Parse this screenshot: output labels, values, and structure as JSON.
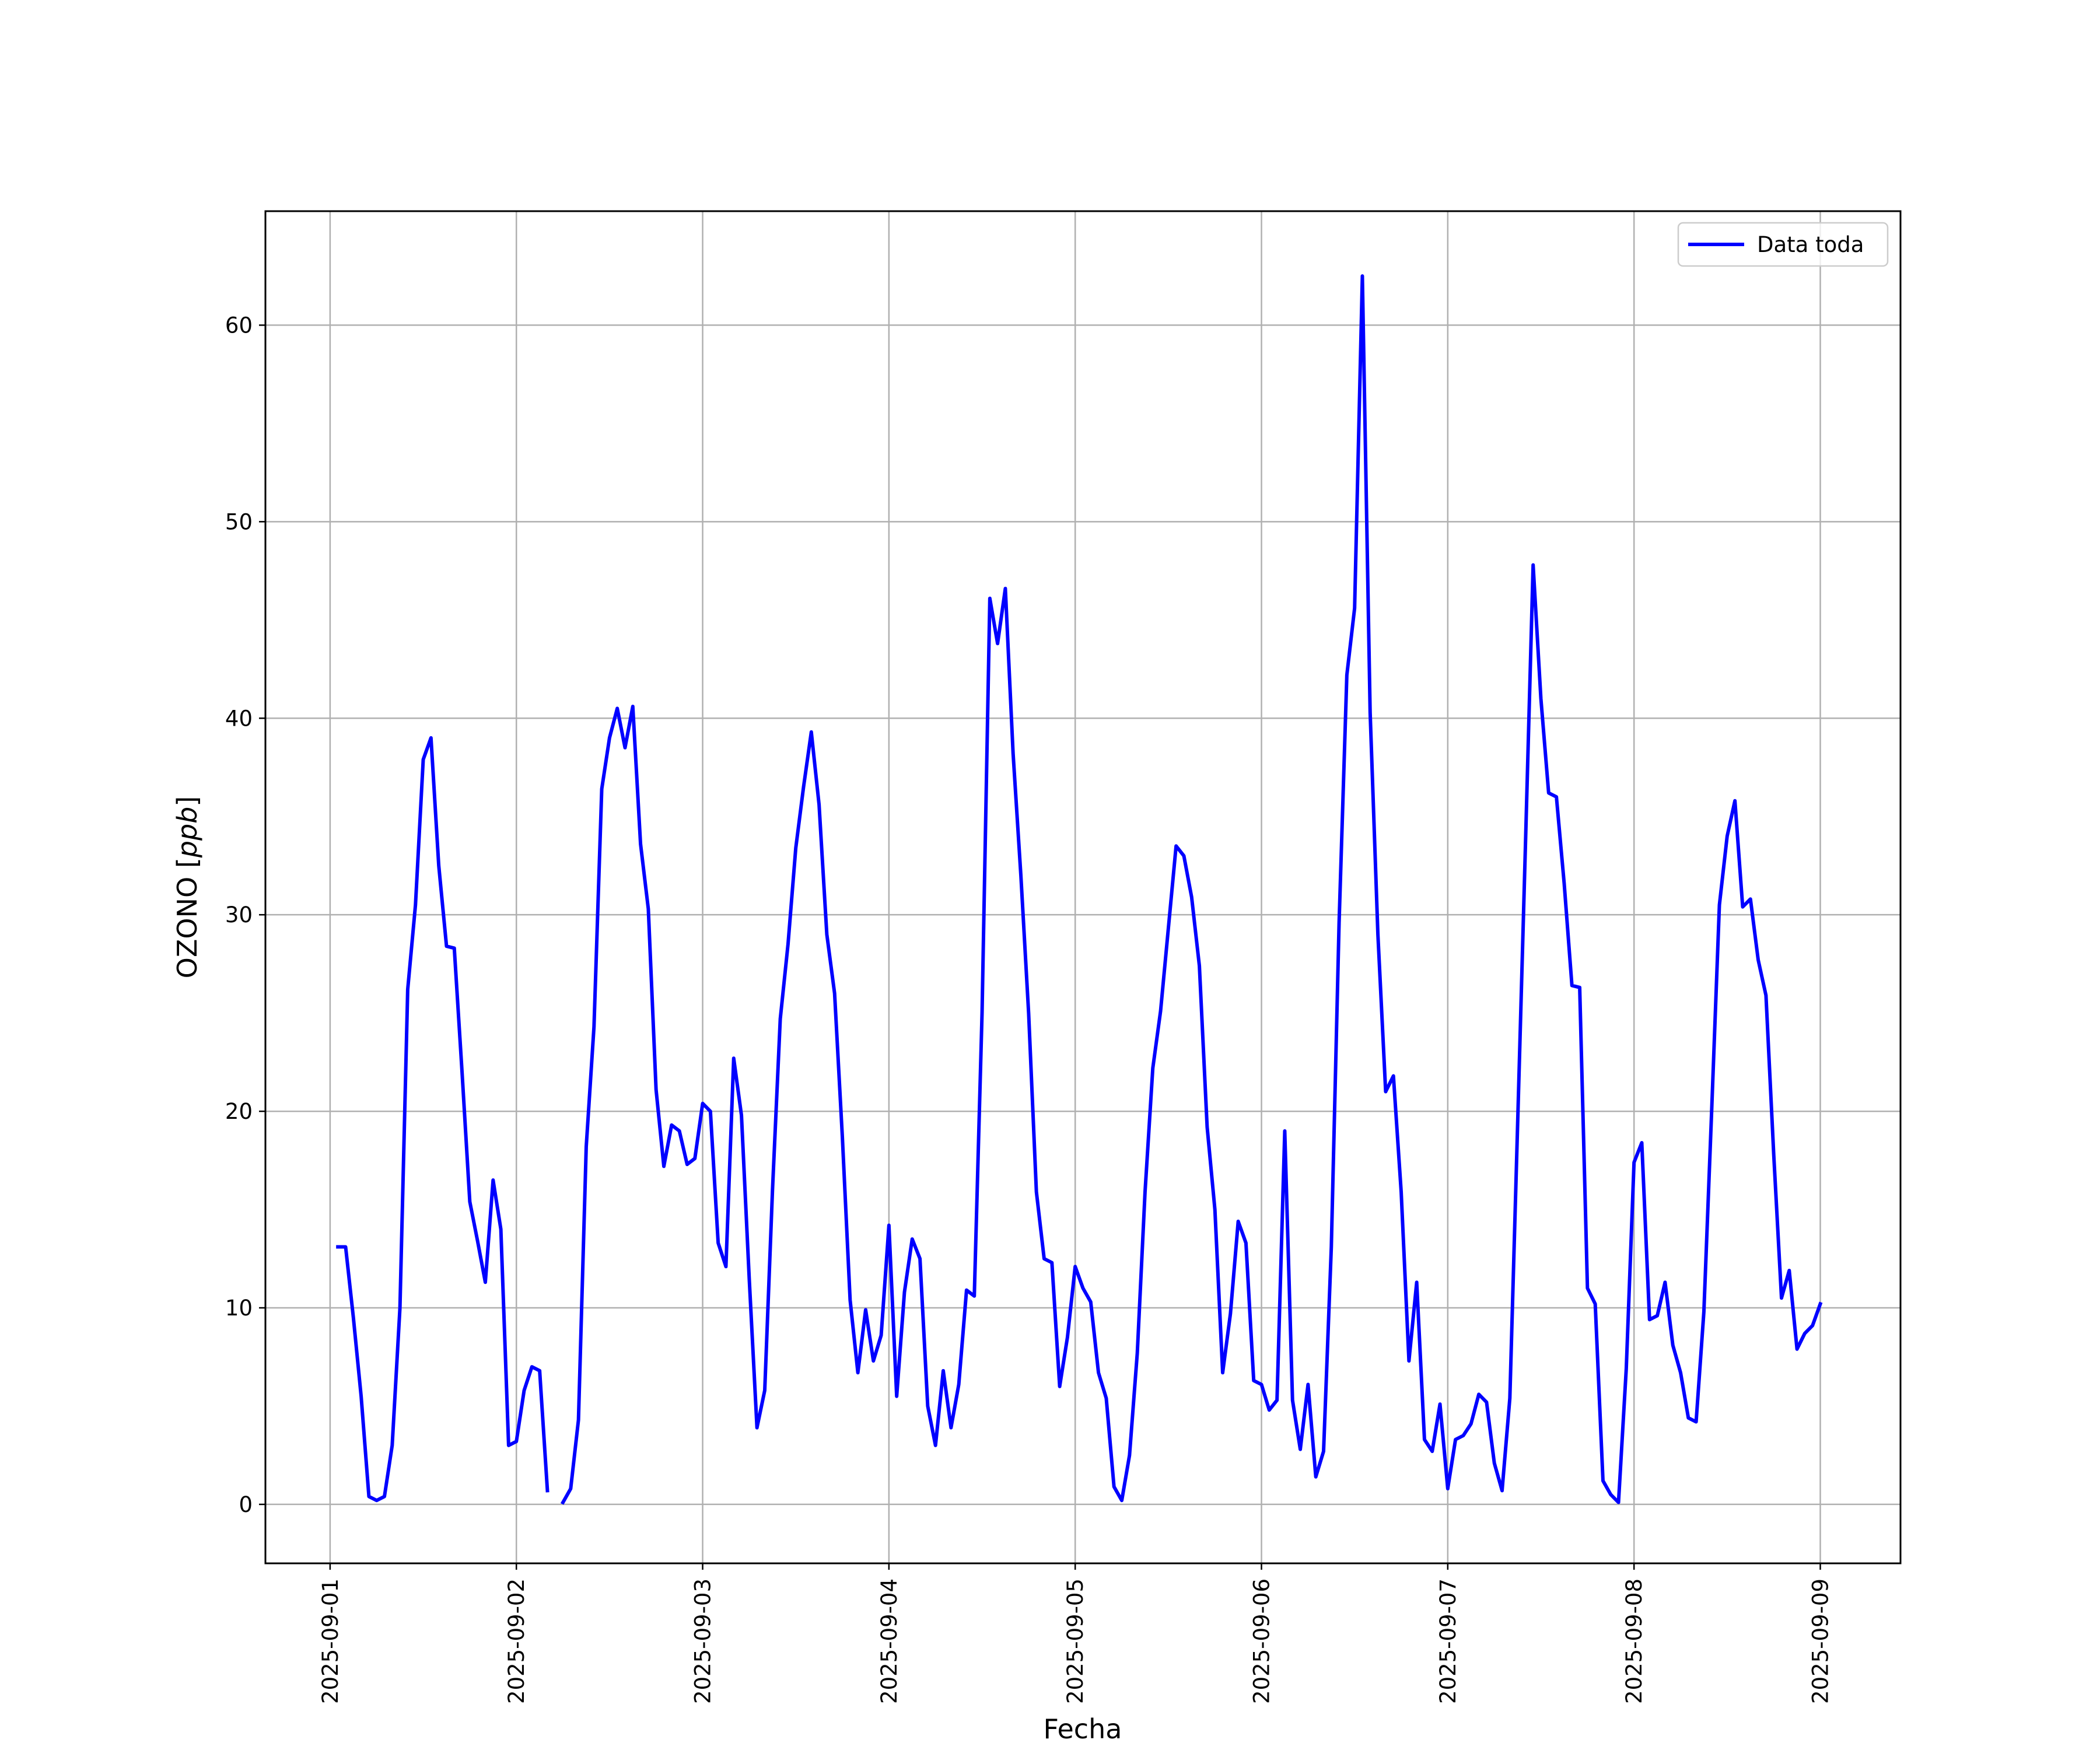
{
  "chart_data": {
    "type": "line",
    "title": "",
    "xlabel": "Fecha",
    "ylabel_prefix": "OZONO [",
    "ylabel_unit": "ppb",
    "ylabel_suffix": "]",
    "xlim": [
      "2025-08-31T15:40",
      "2025-09-09T10:20"
    ],
    "ylim": [
      -3.0,
      65.8
    ],
    "x_ticks": [
      "2025-09-01",
      "2025-09-02",
      "2025-09-03",
      "2025-09-04",
      "2025-09-05",
      "2025-09-06",
      "2025-09-07",
      "2025-09-08",
      "2025-09-09"
    ],
    "y_ticks": [
      0,
      10,
      20,
      30,
      40,
      50,
      60
    ],
    "grid": true,
    "legend_position": "top-right",
    "series": [
      {
        "name": "Data toda",
        "color": "#0000ff",
        "start": "2025-09-01T01:00",
        "step_hours": 1,
        "values": [
          13.1,
          13.1,
          9.5,
          5.5,
          0.4,
          0.2,
          0.4,
          3.0,
          10.0,
          26.2,
          30.5,
          37.9,
          39.0,
          32.5,
          28.4,
          28.3,
          22.0,
          15.4,
          13.4,
          11.3,
          16.5,
          14.0,
          3.0,
          3.2,
          5.8,
          7.0,
          6.8,
          0.7,
          null,
          0.1,
          0.8,
          4.3,
          18.2,
          24.3,
          36.4,
          39.0,
          40.5,
          38.5,
          40.6,
          33.6,
          30.3,
          21.1,
          17.2,
          19.3,
          19.0,
          17.3,
          17.6,
          20.4,
          20.0,
          13.3,
          12.1,
          22.7,
          19.8,
          11.5,
          3.9,
          5.8,
          16.0,
          24.7,
          28.5,
          33.4,
          36.5,
          39.3,
          35.6,
          29.0,
          26.0,
          18.7,
          10.4,
          6.7,
          9.9,
          7.3,
          8.6,
          14.2,
          5.5,
          10.8,
          13.5,
          12.5,
          5.0,
          3.0,
          6.8,
          3.9,
          6.1,
          10.9,
          10.6,
          25.0,
          46.1,
          43.8,
          46.6,
          38.2,
          32.0,
          25.0,
          15.9,
          12.5,
          12.3,
          6.0,
          8.5,
          12.1,
          11.0,
          10.3,
          6.7,
          5.4,
          0.9,
          0.2,
          2.5,
          7.7,
          15.9,
          22.2,
          25.1,
          29.3,
          33.5,
          33.0,
          30.9,
          27.4,
          19.2,
          15.0,
          6.7,
          9.7,
          14.4,
          13.3,
          6.3,
          6.1,
          4.8,
          5.3,
          19.0,
          5.3,
          2.8,
          6.1,
          1.4,
          2.7,
          13.1,
          29.6,
          42.2,
          45.6,
          62.5,
          40.3,
          29.0,
          21.0,
          21.8,
          15.9,
          7.3,
          11.3,
          3.3,
          2.7,
          5.1,
          0.8,
          3.3,
          3.5,
          4.1,
          5.6,
          5.2,
          2.1,
          0.7,
          5.4,
          19.3,
          33.4,
          47.8,
          41.0,
          36.2,
          36.0,
          31.6,
          26.4,
          26.3,
          11.0,
          10.2,
          1.2,
          0.5,
          0.1,
          6.9,
          17.4,
          18.4,
          9.4,
          9.6,
          11.3,
          8.1,
          6.7,
          4.4,
          4.2,
          9.8,
          20.0,
          30.5,
          34.0,
          35.8,
          30.4,
          30.8,
          27.7,
          25.9,
          17.8,
          10.5,
          11.9,
          7.9,
          8.7,
          9.1,
          10.2
        ]
      }
    ]
  }
}
